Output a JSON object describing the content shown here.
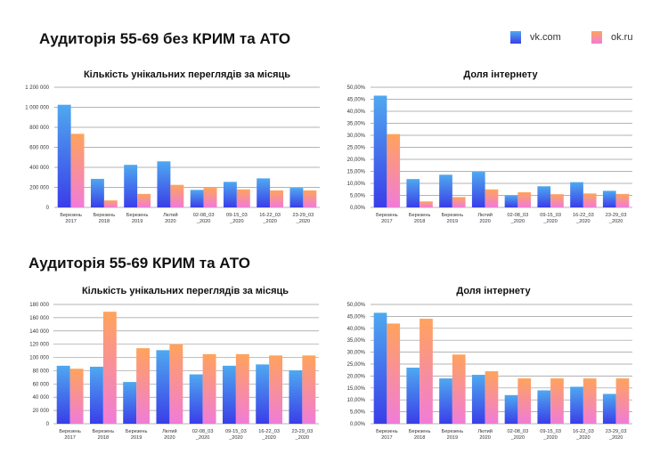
{
  "sections": [
    {
      "title": "Аудиторія 55-69 без КРИМ та АТО"
    },
    {
      "title": "Аудиторія 55-69 КРИМ та АТО"
    }
  ],
  "legend": [
    {
      "name": "vk.com",
      "gradient": [
        "#4fa8f0",
        "#3a3ee8"
      ]
    },
    {
      "name": "ok.ru",
      "gradient": [
        "#ffa35c",
        "#f07cd8"
      ]
    }
  ],
  "chart_data": [
    {
      "type": "bar",
      "title": "Кількість унікальних переглядів за місяць",
      "categories": [
        "Березень 2017",
        "Березень 2018",
        "Березень 2019",
        "Лютий 2020",
        "02-08_03 _2020",
        "09-15_03 _2020",
        "16-22_03 _2020",
        "23-29_03 _2020"
      ],
      "series": [
        {
          "name": "vk.com",
          "values": [
            1025000,
            285000,
            425000,
            460000,
            175000,
            255000,
            290000,
            195000
          ]
        },
        {
          "name": "ok.ru",
          "values": [
            735000,
            70000,
            135000,
            225000,
            195000,
            180000,
            170000,
            170000
          ]
        }
      ],
      "ylim": [
        0,
        1200000
      ],
      "yticks": [
        "0",
        "200 000",
        "400 000",
        "600 000",
        "800 000",
        "1 000 000",
        "1 200 000"
      ],
      "grid": true
    },
    {
      "type": "bar",
      "title": "Доля інтернету",
      "categories": [
        "Березень 2017",
        "Березень 2018",
        "Березень 2019",
        "Лютий 2020",
        "02-08_03 _2020",
        "09-15_03 _2020",
        "16-22_03 _2020",
        "23-29_03 _2020"
      ],
      "series": [
        {
          "name": "vk.com",
          "values": [
            46.5,
            11.8,
            13.6,
            14.8,
            5.0,
            8.8,
            10.5,
            6.9
          ]
        },
        {
          "name": "ok.ru",
          "values": [
            30.5,
            2.5,
            4.3,
            7.5,
            6.3,
            5.5,
            5.8,
            5.6
          ]
        }
      ],
      "ylim": [
        0,
        50
      ],
      "yticks": [
        "0,00%",
        "5,00%",
        "10,00%",
        "15,00%",
        "20,00%",
        "25,00%",
        "30,00%",
        "35,00%",
        "40,00%",
        "45,00%",
        "50,00%"
      ],
      "grid": true
    },
    {
      "type": "bar",
      "title": "Кількість унікальних переглядів за місяць",
      "categories": [
        "Березень 2017",
        "Березень 2018",
        "Березень 2019",
        "Лютий 2020",
        "02-08_03 _2020",
        "09-15_03 _2020",
        "16-22_03 _2020",
        "23-29_03 _2020"
      ],
      "series": [
        {
          "name": "vk.com",
          "values": [
            87500,
            86000,
            63000,
            111000,
            74500,
            87500,
            89500,
            80500
          ]
        },
        {
          "name": "ok.ru",
          "values": [
            83000,
            169000,
            114000,
            120000,
            105000,
            105000,
            103000,
            103000
          ]
        }
      ],
      "ylim": [
        0,
        180000
      ],
      "yticks": [
        "0",
        "20 000",
        "40 000",
        "60 000",
        "80 000",
        "100 000",
        "120 000",
        "140 000",
        "160 000",
        "180 000"
      ],
      "grid": true
    },
    {
      "type": "bar",
      "title": "Доля інтернету",
      "categories": [
        "Березень 2017",
        "Березень 2018",
        "Березень 2019",
        "Лютий 2020",
        "02-08_03 _2020",
        "09-15_03 _2020",
        "16-22_03 _2020",
        "23-29_03 _2020"
      ],
      "series": [
        {
          "name": "vk.com",
          "values": [
            46.5,
            23.5,
            19.0,
            20.5,
            12.0,
            14.0,
            15.5,
            12.5
          ]
        },
        {
          "name": "ok.ru",
          "values": [
            42.0,
            44.0,
            29.0,
            22.0,
            19.0,
            19.0,
            19.0,
            19.0
          ]
        }
      ],
      "ylim": [
        0,
        50
      ],
      "yticks": [
        "0,00%",
        "5,00%",
        "10,00%",
        "15,00%",
        "20,00%",
        "25,00%",
        "30,00%",
        "35,00%",
        "40,00%",
        "45,00%",
        "50,00%"
      ],
      "grid": true
    }
  ]
}
